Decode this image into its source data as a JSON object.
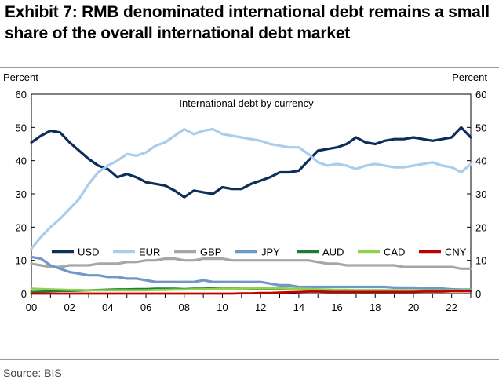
{
  "header": {
    "title": "Exhibit 7: RMB denominated international debt remains a small share of the overall international debt market"
  },
  "footer": {
    "source": "Source: BIS"
  },
  "chart_data": {
    "type": "line",
    "title": "International debt by currency",
    "ylabel_left": "Percent",
    "ylabel_right": "Percent",
    "xlim": [
      2000,
      2023
    ],
    "ylim": [
      0,
      60
    ],
    "yticks": [
      0,
      10,
      20,
      30,
      40,
      50,
      60
    ],
    "xtick_values": [
      2000,
      2002,
      2004,
      2006,
      2008,
      2010,
      2012,
      2014,
      2016,
      2018,
      2020,
      2022
    ],
    "xtick_labels": [
      "00",
      "02",
      "04",
      "06",
      "08",
      "10",
      "12",
      "14",
      "16",
      "18",
      "20",
      "22"
    ],
    "grid": false,
    "legend_position": "lower-left, inside plot",
    "x": [
      2000,
      2000.5,
      2001,
      2001.5,
      2002,
      2002.5,
      2003,
      2003.5,
      2004,
      2004.5,
      2005,
      2005.5,
      2006,
      2006.5,
      2007,
      2007.5,
      2008,
      2008.5,
      2009,
      2009.5,
      2010,
      2010.5,
      2011,
      2011.5,
      2012,
      2012.5,
      2013,
      2013.5,
      2014,
      2014.5,
      2015,
      2015.5,
      2016,
      2016.5,
      2017,
      2017.5,
      2018,
      2018.5,
      2019,
      2019.5,
      2020,
      2020.5,
      2021,
      2021.5,
      2022,
      2022.5,
      2023
    ],
    "series": [
      {
        "name": "USD",
        "color": "#0d2e59",
        "width": 3.2,
        "values": [
          45.5,
          47.5,
          49,
          48.5,
          45.5,
          43,
          40.5,
          38.5,
          37.5,
          35,
          36,
          35,
          33.5,
          33,
          32.5,
          31,
          29,
          31,
          30.5,
          30,
          32,
          31.5,
          31.5,
          33,
          34,
          35,
          36.5,
          36.5,
          37,
          40,
          43,
          43.5,
          44,
          45,
          47,
          45.5,
          45,
          46,
          46.5,
          46.5,
          47,
          46.5,
          46,
          46.5,
          47,
          50,
          47
        ]
      },
      {
        "name": "EUR",
        "color": "#a9cdea",
        "width": 3.2,
        "values": [
          13.5,
          17,
          20,
          22.5,
          25.5,
          28.5,
          33,
          36.5,
          38.5,
          40,
          42,
          41.5,
          42.5,
          44.5,
          45.5,
          47.5,
          49.5,
          48,
          49,
          49.5,
          48,
          47.5,
          47,
          46.5,
          46,
          45,
          44.5,
          44,
          44,
          42,
          39.5,
          38.5,
          39,
          38.5,
          37.5,
          38.5,
          39,
          38.5,
          38,
          38,
          38.5,
          39,
          39.5,
          38.5,
          38,
          36.5,
          39
        ]
      },
      {
        "name": "GBP",
        "color": "#a6a6a6",
        "width": 3.2,
        "values": [
          9,
          8.5,
          8,
          8,
          8.5,
          8.5,
          8.5,
          9,
          9,
          9,
          9.5,
          9.5,
          10,
          10,
          10.5,
          10.5,
          10,
          10,
          10.5,
          10.5,
          10.5,
          10,
          10,
          10,
          10,
          10,
          10,
          10,
          10,
          10,
          9.5,
          9,
          9,
          8.5,
          8.5,
          8.5,
          8.5,
          8.5,
          8.5,
          8,
          8,
          8,
          8,
          8,
          8,
          7.5,
          7.5
        ]
      },
      {
        "name": "JPY",
        "color": "#6f97c9",
        "width": 3.2,
        "values": [
          11,
          10.5,
          8.5,
          7.5,
          6.5,
          6,
          5.5,
          5.5,
          5,
          5,
          4.5,
          4.5,
          4,
          3.5,
          3.5,
          3.5,
          3.5,
          3.5,
          4,
          3.5,
          3.5,
          3.5,
          3.5,
          3.5,
          3.5,
          3,
          2.5,
          2.5,
          2,
          2,
          2,
          2,
          2,
          2,
          2,
          2,
          2,
          2,
          1.8,
          1.8,
          1.8,
          1.7,
          1.5,
          1.5,
          1.3,
          1.2,
          1.2
        ]
      },
      {
        "name": "AUD",
        "color": "#1f7a3c",
        "width": 2.8,
        "values": [
          0.5,
          0.6,
          0.7,
          0.8,
          0.8,
          0.9,
          1,
          1.1,
          1.2,
          1.3,
          1.3,
          1.4,
          1.4,
          1.5,
          1.5,
          1.5,
          1.4,
          1.5,
          1.5,
          1.6,
          1.6,
          1.6,
          1.5,
          1.5,
          1.5,
          1.5,
          1.4,
          1.4,
          1.3,
          1.2,
          1.1,
          1.1,
          1,
          1,
          1,
          1,
          1,
          1,
          1,
          1,
          1,
          1,
          1,
          1,
          1,
          1,
          1
        ]
      },
      {
        "name": "CAD",
        "color": "#92d050",
        "width": 2.8,
        "values": [
          1.5,
          1.4,
          1.3,
          1.2,
          1.1,
          1.1,
          1,
          1,
          1,
          1,
          1,
          1,
          1,
          1.1,
          1.1,
          1.2,
          1.2,
          1.3,
          1.3,
          1.4,
          1.5,
          1.5,
          1.5,
          1.6,
          1.6,
          1.6,
          1.6,
          1.5,
          1.5,
          1.4,
          1.3,
          1.2,
          1.1,
          1.1,
          1,
          1,
          1,
          1,
          1,
          1,
          1,
          1,
          1,
          1,
          1,
          1,
          1
        ]
      },
      {
        "name": "CNY",
        "color": "#c00000",
        "width": 2.8,
        "values": [
          0,
          0,
          0,
          0,
          0,
          0,
          0,
          0,
          0,
          0,
          0,
          0,
          0,
          0,
          0,
          0,
          0,
          0,
          0,
          0,
          0,
          0,
          0.1,
          0.1,
          0.2,
          0.2,
          0.3,
          0.4,
          0.5,
          0.6,
          0.6,
          0.5,
          0.5,
          0.5,
          0.5,
          0.5,
          0.5,
          0.5,
          0.5,
          0.5,
          0.5,
          0.6,
          0.6,
          0.6,
          0.7,
          0.7,
          0.7
        ]
      }
    ]
  }
}
